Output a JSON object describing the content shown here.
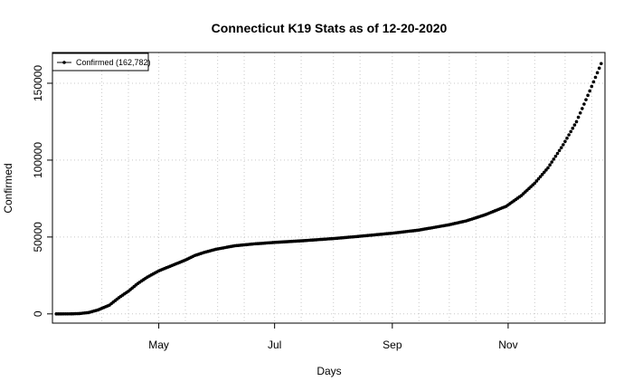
{
  "chart_data": {
    "type": "scatter",
    "title": "Connecticut K19 Stats as of 12-20-2020",
    "xlabel": "Days",
    "ylabel": "Confirmed",
    "x_start": "2020-03-08",
    "x_end": "2020-12-20",
    "xlim": [
      "2020-03-06",
      "2020-12-22"
    ],
    "ylim": [
      -6000,
      170000
    ],
    "x_ticks": [
      {
        "date": "2020-05-01",
        "label": "May"
      },
      {
        "date": "2020-07-01",
        "label": "Jul"
      },
      {
        "date": "2020-09-01",
        "label": "Sep"
      },
      {
        "date": "2020-11-01",
        "label": "Nov"
      }
    ],
    "y_ticks": [
      0,
      50000,
      100000,
      150000
    ],
    "grid": true,
    "legend_position": "top-left",
    "series": [
      {
        "name": "Confirmed (162,782)",
        "color": "#000000",
        "points": [
          [
            "2020-03-08",
            0
          ],
          [
            "2020-03-15",
            25
          ],
          [
            "2020-03-20",
            200
          ],
          [
            "2020-03-25",
            875
          ],
          [
            "2020-03-30",
            2571
          ],
          [
            "2020-04-05",
            5675
          ],
          [
            "2020-04-10",
            10538
          ],
          [
            "2020-04-15",
            14755
          ],
          [
            "2020-04-20",
            19815
          ],
          [
            "2020-04-25",
            23938
          ],
          [
            "2020-05-01",
            28000
          ],
          [
            "2020-05-05",
            30000
          ],
          [
            "2020-05-10",
            32500
          ],
          [
            "2020-05-15",
            35000
          ],
          [
            "2020-05-20",
            38000
          ],
          [
            "2020-05-25",
            40000
          ],
          [
            "2020-05-31",
            42000
          ],
          [
            "2020-06-10",
            44300
          ],
          [
            "2020-06-20",
            45500
          ],
          [
            "2020-07-01",
            46500
          ],
          [
            "2020-07-15",
            47500
          ],
          [
            "2020-08-01",
            49000
          ],
          [
            "2020-08-15",
            50500
          ],
          [
            "2020-09-01",
            52500
          ],
          [
            "2020-09-15",
            54500
          ],
          [
            "2020-10-01",
            58000
          ],
          [
            "2020-10-10",
            60500
          ],
          [
            "2020-10-20",
            64500
          ],
          [
            "2020-10-31",
            70000
          ],
          [
            "2020-11-08",
            77000
          ],
          [
            "2020-11-15",
            85000
          ],
          [
            "2020-11-22",
            95000
          ],
          [
            "2020-11-30",
            110000
          ],
          [
            "2020-12-07",
            125000
          ],
          [
            "2020-12-14",
            145000
          ],
          [
            "2020-12-20",
            162782
          ]
        ]
      }
    ]
  }
}
